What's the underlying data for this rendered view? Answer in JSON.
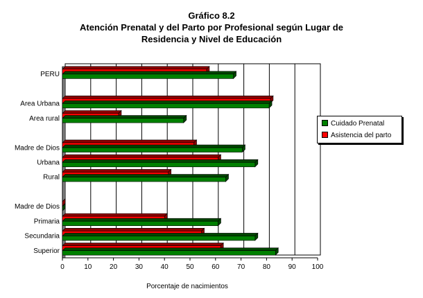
{
  "chart_data": {
    "type": "bar",
    "orientation": "horizontal",
    "title": "Gráfico 8.2",
    "subtitle_lines": [
      "Atención Prenatal y del Parto por Profesional según Lugar de",
      "Residencia y Nivel de Educación"
    ],
    "xlabel": "Porcentaje de nacimientos",
    "xlim": [
      0,
      100
    ],
    "xticks": [
      "0",
      "10",
      "20",
      "30",
      "40",
      "50",
      "60",
      "70",
      "80",
      "90",
      "100"
    ],
    "grid": true,
    "legend_placement": "right",
    "categories": [
      "PERU",
      "",
      "Area Urbana",
      "Area rural",
      "",
      "Madre de Dios",
      "Urbana",
      "Rural",
      "",
      "Madre de Dios",
      "Primaria",
      "Secundaria",
      "Superior"
    ],
    "series": [
      {
        "name": "Asistencia del parto",
        "color": "#ff0000",
        "values": [
          56.5,
          null,
          81.5,
          22,
          null,
          51.5,
          61,
          41.5,
          null,
          0,
          40,
          54.5,
          62
        ]
      },
      {
        "name": "Cuidado Prenatal",
        "color": "#008000",
        "values": [
          67,
          null,
          81,
          47.5,
          null,
          70.5,
          75.5,
          64,
          null,
          0,
          61,
          75.5,
          83.5
        ]
      }
    ],
    "legend_order": [
      "Cuidado Prenatal",
      "Asistencia del parto"
    ]
  }
}
